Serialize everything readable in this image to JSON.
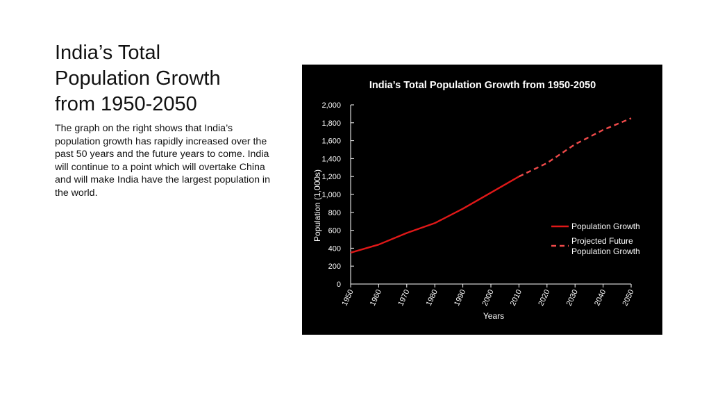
{
  "slide": {
    "title_lines": [
      "India’s Total",
      "Population Growth",
      "from 1950-2050"
    ],
    "body": "The graph on the right shows that India’s population growth has rapidly increased over the past 50 years and the future years to come. India will continue to a point which will overtake China and will make India have the largest population in the world."
  },
  "chart_data": {
    "type": "line",
    "title": "India’s Total Population Growth from 1950-2050",
    "xlabel": "Years",
    "ylabel": "Population (1,000s)",
    "xlim": [
      1950,
      2050
    ],
    "ylim": [
      0,
      2000
    ],
    "x_ticks": [
      "1950",
      "1960",
      "1970",
      "1980",
      "1990",
      "2000",
      "2010",
      "2020",
      "2030",
      "2040",
      "2050"
    ],
    "y_ticks": [
      "0",
      "200",
      "400",
      "600",
      "800",
      "1,000",
      "1,200",
      "1,400",
      "1,600",
      "1,800",
      "2,000"
    ],
    "grid": false,
    "legend_position": "right",
    "background": "#000000",
    "series": [
      {
        "name": "Population Growth",
        "style": "solid",
        "color": "#e01818",
        "x": [
          1950,
          1960,
          1970,
          1980,
          1990,
          2000,
          2010
        ],
        "y": [
          350,
          440,
          570,
          680,
          840,
          1020,
          1200
        ]
      },
      {
        "name": "Projected Future Population Growth",
        "style": "dashed",
        "color": "#f04a4a",
        "x": [
          2010,
          2020,
          2030,
          2040,
          2050
        ],
        "y": [
          1200,
          1350,
          1560,
          1720,
          1850
        ]
      }
    ]
  }
}
